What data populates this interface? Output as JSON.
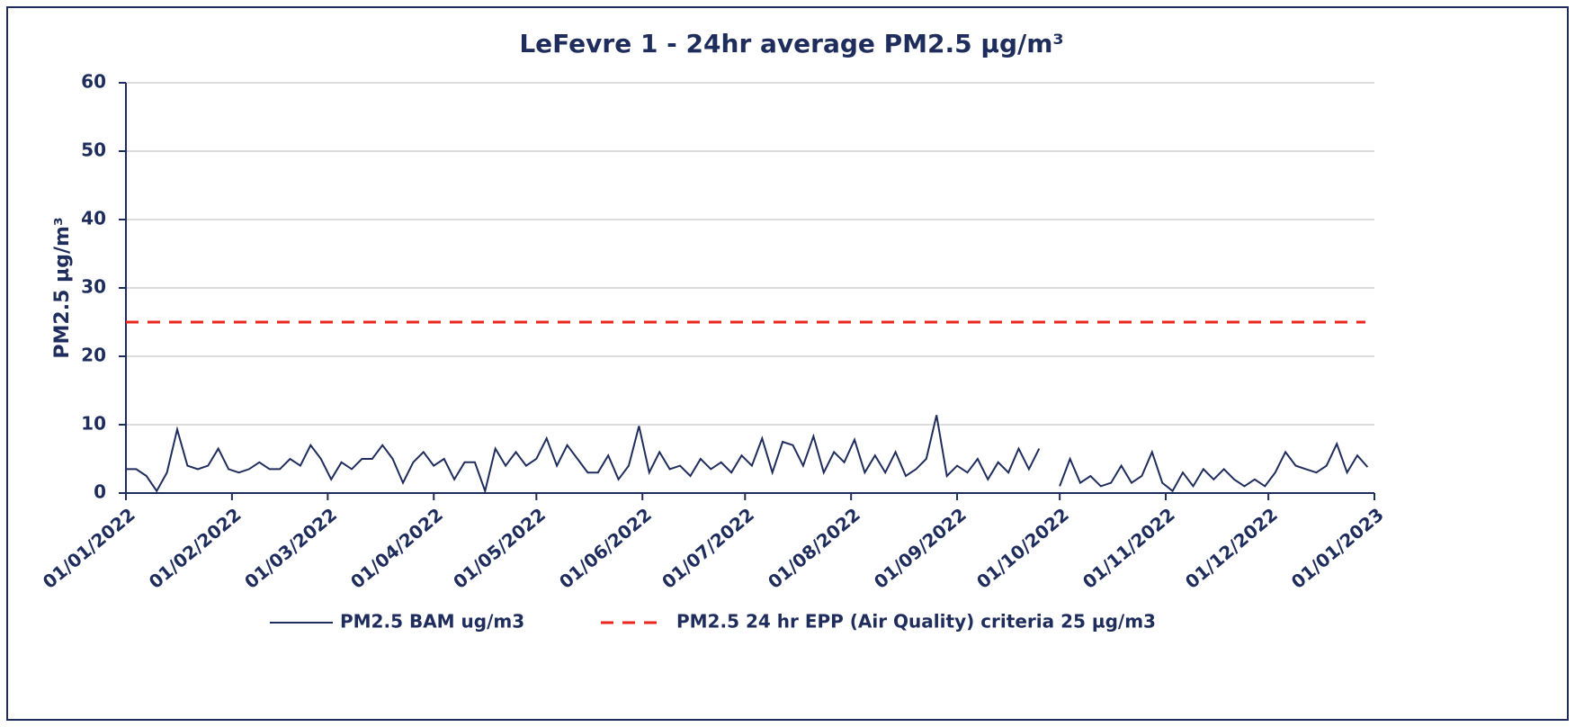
{
  "chart_data": {
    "type": "line",
    "title": "LeFevre 1 - 24hr average PM2.5 µg/m³",
    "y_label": "PM2.5 µg/m³",
    "x": [
      "2022-01-01",
      "2022-01-04",
      "2022-01-07",
      "2022-01-10",
      "2022-01-13",
      "2022-01-16",
      "2022-01-19",
      "2022-01-22",
      "2022-01-25",
      "2022-01-28",
      "2022-01-31",
      "2022-02-03",
      "2022-02-06",
      "2022-02-09",
      "2022-02-12",
      "2022-02-15",
      "2022-02-18",
      "2022-02-21",
      "2022-02-24",
      "2022-02-27",
      "2022-03-02",
      "2022-03-05",
      "2022-03-08",
      "2022-03-11",
      "2022-03-14",
      "2022-03-17",
      "2022-03-20",
      "2022-03-23",
      "2022-03-26",
      "2022-03-29",
      "2022-04-01",
      "2022-04-04",
      "2022-04-07",
      "2022-04-10",
      "2022-04-13",
      "2022-04-16",
      "2022-04-19",
      "2022-04-22",
      "2022-04-25",
      "2022-04-28",
      "2022-05-01",
      "2022-05-04",
      "2022-05-07",
      "2022-05-10",
      "2022-05-13",
      "2022-05-16",
      "2022-05-19",
      "2022-05-22",
      "2022-05-25",
      "2022-05-28",
      "2022-05-31",
      "2022-06-03",
      "2022-06-06",
      "2022-06-09",
      "2022-06-12",
      "2022-06-15",
      "2022-06-18",
      "2022-06-21",
      "2022-06-24",
      "2022-06-27",
      "2022-06-30",
      "2022-07-03",
      "2022-07-06",
      "2022-07-09",
      "2022-07-12",
      "2022-07-15",
      "2022-07-18",
      "2022-07-21",
      "2022-07-24",
      "2022-07-27",
      "2022-07-30",
      "2022-08-02",
      "2022-08-05",
      "2022-08-08",
      "2022-08-11",
      "2022-08-14",
      "2022-08-17",
      "2022-08-20",
      "2022-08-23",
      "2022-08-26",
      "2022-08-29",
      "2022-09-01",
      "2022-09-04",
      "2022-09-07",
      "2022-09-10",
      "2022-09-13",
      "2022-09-16",
      "2022-09-19",
      "2022-09-22",
      "2022-09-25",
      "2022-09-28",
      "2022-10-01",
      "2022-10-04",
      "2022-10-07",
      "2022-10-10",
      "2022-10-13",
      "2022-10-16",
      "2022-10-19",
      "2022-10-22",
      "2022-10-25",
      "2022-10-28",
      "2022-10-31",
      "2022-11-03",
      "2022-11-06",
      "2022-11-09",
      "2022-11-12",
      "2022-11-15",
      "2022-11-18",
      "2022-11-21",
      "2022-11-24",
      "2022-11-27",
      "2022-11-30",
      "2022-12-03",
      "2022-12-06",
      "2022-12-09",
      "2022-12-12",
      "2022-12-15",
      "2022-12-18",
      "2022-12-21",
      "2022-12-24",
      "2022-12-27",
      "2022-12-30"
    ],
    "series": [
      {
        "name": "PM2.5 BAM ug/m3",
        "color": "#1f2d5c",
        "values": [
          3.5,
          3.5,
          2.5,
          0.3,
          3,
          9.3,
          4,
          3.5,
          4,
          6.5,
          3.5,
          3,
          3.5,
          4.5,
          3.5,
          3.5,
          5,
          4,
          7,
          5,
          2,
          4.5,
          3.5,
          5,
          5,
          7,
          5,
          1.5,
          4.5,
          6,
          4,
          5,
          2,
          4.5,
          4.5,
          0.3,
          6.5,
          4,
          6,
          4,
          5,
          8,
          4,
          7,
          5,
          3,
          3,
          5.5,
          2,
          4,
          9.8,
          3,
          6,
          3.5,
          4,
          2.5,
          5,
          3.5,
          4.5,
          3,
          5.5,
          4,
          8,
          3,
          7.5,
          7,
          4,
          8.3,
          3,
          6,
          4.5,
          7.8,
          3,
          5.5,
          3,
          6,
          2.5,
          3.5,
          5,
          11.4,
          2.5,
          4,
          3,
          5,
          2,
          4.5,
          3,
          6.5,
          3.5,
          6.5,
          null,
          1,
          5,
          1.5,
          2.5,
          1,
          1.5,
          4,
          1.5,
          2.5,
          6,
          1.5,
          0.3,
          3,
          1,
          3.5,
          2,
          3.5,
          2,
          1,
          2,
          1,
          3,
          6,
          4,
          3.5,
          3,
          4,
          7.2,
          3,
          5.5,
          3.8
        ]
      }
    ],
    "threshold": {
      "name": "PM2.5 24 hr EPP (Air Quality) criteria  25  µg/m3",
      "value": 25,
      "color": "#e8261c"
    },
    "xlim": [
      "2022-01-01",
      "2023-01-01"
    ],
    "xticks": [
      {
        "value": "2022-01-01",
        "label": "01/01/2022"
      },
      {
        "value": "2022-02-01",
        "label": "01/02/2022"
      },
      {
        "value": "2022-03-01",
        "label": "01/03/2022"
      },
      {
        "value": "2022-04-01",
        "label": "01/04/2022"
      },
      {
        "value": "2022-05-01",
        "label": "01/05/2022"
      },
      {
        "value": "2022-06-01",
        "label": "01/06/2022"
      },
      {
        "value": "2022-07-01",
        "label": "01/07/2022"
      },
      {
        "value": "2022-08-01",
        "label": "01/08/2022"
      },
      {
        "value": "2022-09-01",
        "label": "01/09/2022"
      },
      {
        "value": "2022-10-01",
        "label": "01/10/2022"
      },
      {
        "value": "2022-11-01",
        "label": "01/11/2022"
      },
      {
        "value": "2022-12-01",
        "label": "01/12/2022"
      },
      {
        "value": "2023-01-01",
        "label": "01/01/2023"
      }
    ],
    "ylim": [
      0,
      60
    ],
    "yticks": [
      0,
      10,
      20,
      30,
      40,
      50,
      60
    ],
    "grid": true
  }
}
